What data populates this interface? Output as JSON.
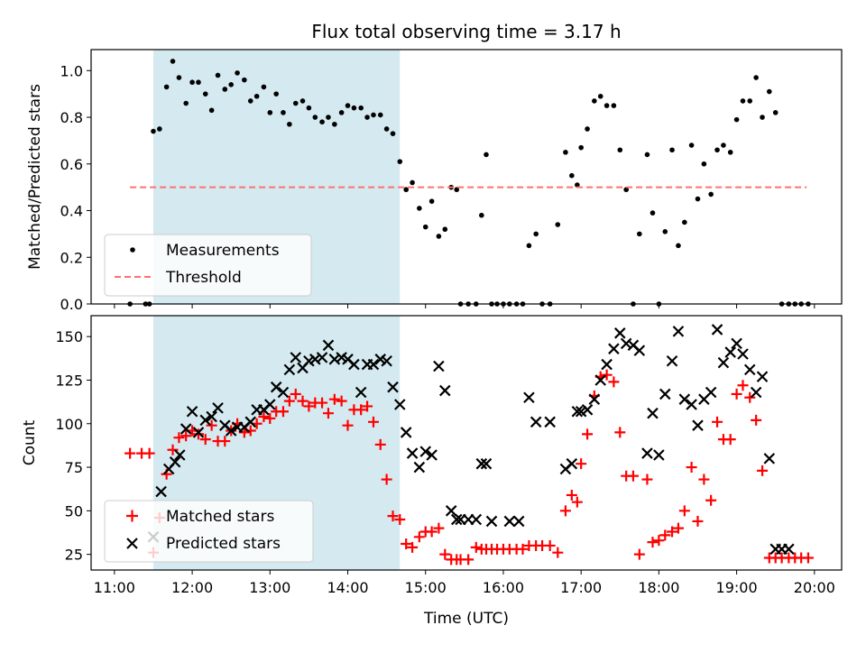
{
  "chart_data": [
    {
      "type": "scatter",
      "title": "Flux total observing time = 3.17 h",
      "xlabel": "",
      "ylabel": "Matched/Predicted stars",
      "xlim": [
        10.7,
        20.35
      ],
      "ylim": [
        0,
        1.09
      ],
      "yticks": [
        0.0,
        0.2,
        0.4,
        0.6,
        0.8,
        1.0
      ],
      "ytick_labels": [
        "0.0",
        "0.2",
        "0.4",
        "0.6",
        "0.8",
        "1.0"
      ],
      "shaded_interval": [
        11.5,
        14.67
      ],
      "shaded_color": "#d4eaf0",
      "legend_position": "lower-left",
      "series": [
        {
          "name": "Measurements",
          "kind": "scatter",
          "color": "#000000",
          "x": [
            11.2,
            11.4,
            11.45,
            11.5,
            11.58,
            11.67,
            11.75,
            11.83,
            11.92,
            12.0,
            12.08,
            12.17,
            12.25,
            12.33,
            12.42,
            12.5,
            12.58,
            12.67,
            12.75,
            12.83,
            12.92,
            13.0,
            13.08,
            13.17,
            13.25,
            13.33,
            13.42,
            13.5,
            13.58,
            13.67,
            13.75,
            13.83,
            13.92,
            14.0,
            14.08,
            14.17,
            14.25,
            14.33,
            14.42,
            14.5,
            14.58,
            14.67,
            14.75,
            14.83,
            14.92,
            15.0,
            15.08,
            15.17,
            15.25,
            15.33,
            15.4,
            15.45,
            15.55,
            15.65,
            15.72,
            15.78,
            15.85,
            15.92,
            16.0,
            16.08,
            16.17,
            16.25,
            16.33,
            16.42,
            16.5,
            16.6,
            16.7,
            16.8,
            16.88,
            16.95,
            17.0,
            17.08,
            17.17,
            17.25,
            17.33,
            17.42,
            17.5,
            17.58,
            17.67,
            17.75,
            17.85,
            17.92,
            18.0,
            18.08,
            18.17,
            18.25,
            18.33,
            18.42,
            18.5,
            18.58,
            18.67,
            18.75,
            18.83,
            18.92,
            19.0,
            19.08,
            19.17,
            19.25,
            19.33,
            19.42,
            19.5,
            19.58,
            19.67,
            19.75,
            19.83,
            19.92
          ],
          "y": [
            0.0,
            0.0,
            0.0,
            0.74,
            0.75,
            0.93,
            1.04,
            0.97,
            0.86,
            0.95,
            0.95,
            0.9,
            0.83,
            0.98,
            0.92,
            0.94,
            0.99,
            0.96,
            0.87,
            0.89,
            0.93,
            0.82,
            0.9,
            0.82,
            0.77,
            0.86,
            0.87,
            0.84,
            0.8,
            0.78,
            0.8,
            0.77,
            0.82,
            0.85,
            0.84,
            0.84,
            0.8,
            0.81,
            0.81,
            0.75,
            0.73,
            0.61,
            0.49,
            0.52,
            0.41,
            0.33,
            0.44,
            0.29,
            0.32,
            0.5,
            0.49,
            0.0,
            0.0,
            0.0,
            0.38,
            0.64,
            0.0,
            0.0,
            0.0,
            0.0,
            0.0,
            0.0,
            0.25,
            0.3,
            0.0,
            0.0,
            0.34,
            0.65,
            0.55,
            0.51,
            0.67,
            0.75,
            0.87,
            0.89,
            0.85,
            0.85,
            0.66,
            0.49,
            0.0,
            0.3,
            0.64,
            0.39,
            0.0,
            0.31,
            0.66,
            0.25,
            0.35,
            0.68,
            0.45,
            0.6,
            0.47,
            0.66,
            0.68,
            0.65,
            0.79,
            0.87,
            0.87,
            0.97,
            0.8,
            0.91,
            0.82,
            0.0,
            0.0,
            0.0,
            0.0,
            0.0
          ]
        },
        {
          "name": "Threshold",
          "kind": "dashed-line",
          "color": "#ff7070",
          "x": [
            11.2,
            19.9
          ],
          "y": [
            0.5,
            0.5
          ]
        }
      ]
    },
    {
      "type": "scatter",
      "title": "",
      "xlabel": "Time (UTC)",
      "ylabel": "Count",
      "xlim": [
        10.7,
        20.35
      ],
      "ylim": [
        16,
        162
      ],
      "xticks": [
        11,
        12,
        13,
        14,
        15,
        16,
        17,
        18,
        19,
        20
      ],
      "xtick_labels": [
        "11:00",
        "12:00",
        "13:00",
        "14:00",
        "15:00",
        "16:00",
        "17:00",
        "18:00",
        "19:00",
        "20:00"
      ],
      "yticks": [
        25,
        50,
        75,
        100,
        125,
        150
      ],
      "ytick_labels": [
        "25",
        "50",
        "75",
        "100",
        "125",
        "150"
      ],
      "shaded_interval": [
        11.5,
        14.67
      ],
      "shaded_color": "#d4eaf0",
      "legend_position": "lower-left",
      "series": [
        {
          "name": "Matched stars",
          "kind": "plus",
          "color": "#ff0000",
          "x": [
            11.2,
            11.35,
            11.45,
            11.5,
            11.58,
            11.67,
            11.75,
            11.83,
            11.92,
            12.0,
            12.08,
            12.17,
            12.25,
            12.33,
            12.42,
            12.5,
            12.58,
            12.67,
            12.75,
            12.83,
            12.92,
            13.0,
            13.08,
            13.17,
            13.25,
            13.33,
            13.42,
            13.5,
            13.58,
            13.67,
            13.75,
            13.83,
            13.92,
            14.0,
            14.08,
            14.17,
            14.25,
            14.33,
            14.42,
            14.5,
            14.58,
            14.67,
            14.75,
            14.83,
            14.92,
            15.0,
            15.08,
            15.17,
            15.25,
            15.33,
            15.4,
            15.45,
            15.55,
            15.65,
            15.72,
            15.78,
            15.85,
            15.92,
            16.0,
            16.08,
            16.17,
            16.25,
            16.33,
            16.42,
            16.5,
            16.6,
            16.7,
            16.8,
            16.88,
            16.95,
            17.0,
            17.08,
            17.17,
            17.25,
            17.33,
            17.42,
            17.5,
            17.58,
            17.67,
            17.75,
            17.85,
            17.92,
            18.0,
            18.08,
            18.17,
            18.25,
            18.33,
            18.42,
            18.5,
            18.58,
            18.67,
            18.75,
            18.83,
            18.92,
            19.0,
            19.08,
            19.17,
            19.25,
            19.33,
            19.42,
            19.5,
            19.58,
            19.67,
            19.75,
            19.83,
            19.92
          ],
          "y": [
            83,
            83,
            83,
            26,
            46,
            71,
            85,
            92,
            93,
            96,
            94,
            91,
            99,
            90,
            90,
            96,
            100,
            95,
            96,
            100,
            104,
            103,
            107,
            107,
            113,
            117,
            113,
            110,
            112,
            112,
            106,
            114,
            113,
            99,
            108,
            108,
            110,
            101,
            88,
            68,
            47,
            45,
            31,
            29,
            35,
            38,
            38,
            40,
            25,
            22,
            22,
            22,
            22,
            29,
            28,
            28,
            28,
            28,
            28,
            28,
            28,
            28,
            30,
            30,
            30,
            30,
            26,
            50,
            59,
            55,
            77,
            94,
            116,
            127,
            128,
            124,
            95,
            70,
            70,
            25,
            68,
            32,
            33,
            36,
            38,
            40,
            50,
            75,
            44,
            68,
            56,
            101,
            91,
            91,
            117,
            122,
            115,
            102,
            73,
            23,
            23,
            23,
            23,
            23,
            23,
            23
          ]
        },
        {
          "name": "Predicted stars",
          "kind": "cross",
          "color": "#000000",
          "x": [
            11.5,
            11.6,
            11.7,
            11.78,
            11.84,
            11.92,
            12.0,
            12.08,
            12.17,
            12.25,
            12.33,
            12.42,
            12.5,
            12.58,
            12.67,
            12.75,
            12.83,
            12.92,
            13.0,
            13.08,
            13.17,
            13.25,
            13.33,
            13.42,
            13.5,
            13.58,
            13.67,
            13.75,
            13.83,
            13.92,
            14.0,
            14.08,
            14.17,
            14.25,
            14.33,
            14.42,
            14.5,
            14.58,
            14.67,
            14.75,
            14.83,
            14.92,
            15.0,
            15.08,
            15.17,
            15.25,
            15.33,
            15.4,
            15.45,
            15.55,
            15.65,
            15.72,
            15.78,
            15.85,
            16.08,
            16.2,
            16.33,
            16.42,
            16.6,
            16.8,
            16.88,
            16.95,
            17.0,
            17.08,
            17.17,
            17.25,
            17.33,
            17.42,
            17.5,
            17.58,
            17.67,
            17.75,
            17.85,
            17.92,
            18.0,
            18.08,
            18.17,
            18.25,
            18.33,
            18.42,
            18.5,
            18.58,
            18.67,
            18.75,
            18.83,
            18.92,
            19.0,
            19.08,
            19.17,
            19.25,
            19.33,
            19.42,
            19.5,
            19.58,
            19.67
          ],
          "y": [
            35,
            61,
            74,
            78,
            82,
            97,
            107,
            95,
            102,
            104,
            109,
            99,
            96,
            98,
            98,
            101,
            108,
            108,
            111,
            121,
            118,
            131,
            138,
            132,
            136,
            137,
            138,
            145,
            137,
            138,
            137,
            134,
            118,
            134,
            134,
            137,
            136,
            121,
            111,
            95,
            83,
            75,
            84,
            82,
            133,
            119,
            50,
            45,
            45,
            45,
            45,
            77,
            77,
            44,
            44,
            44,
            115,
            101,
            101,
            74,
            77,
            107,
            107,
            108,
            114,
            125,
            134,
            143,
            152,
            146,
            145,
            142,
            83,
            106,
            82,
            117,
            136,
            153,
            114,
            111,
            99,
            114,
            118,
            154,
            135,
            141,
            146,
            140,
            131,
            118,
            127,
            80,
            28,
            28,
            28
          ]
        }
      ]
    }
  ]
}
